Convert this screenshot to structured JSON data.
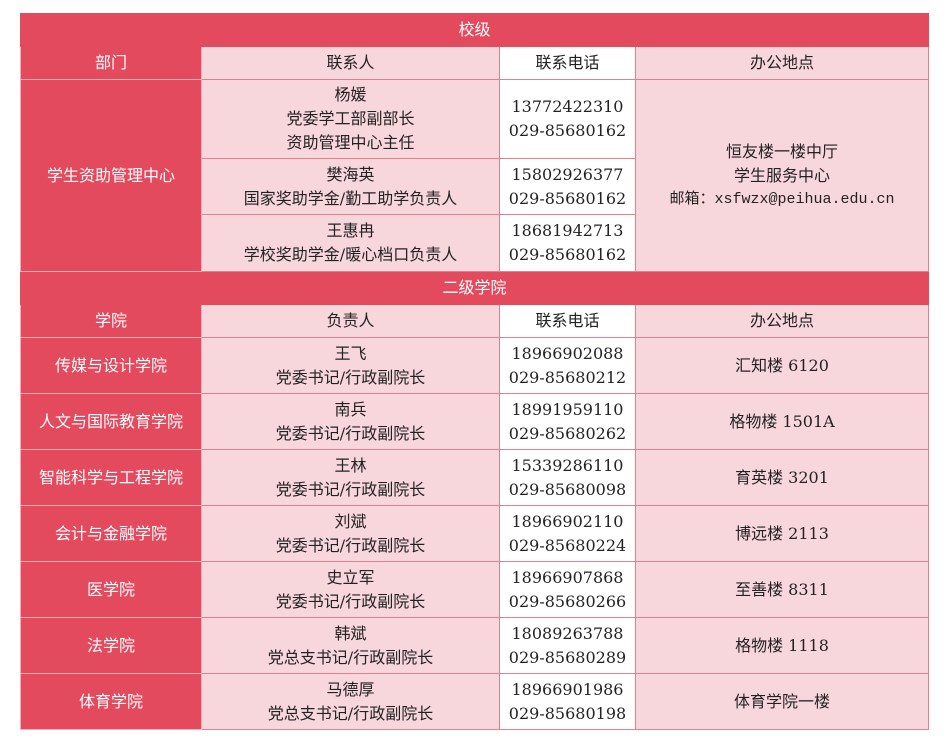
{
  "school": {
    "section_title": "校级",
    "headers": [
      "部门",
      "联系人",
      "联系电话",
      "办公地点"
    ],
    "department": "学生资助管理中心",
    "contacts": [
      {
        "lines": [
          "杨媛",
          "党委学工部副部长",
          "资助管理中心主任"
        ],
        "phones": [
          "13772422310",
          "029-85680162"
        ]
      },
      {
        "lines": [
          "樊海英",
          "国家奖助学金/勤工助学负责人"
        ],
        "phones": [
          "15802926377",
          "029-85680162"
        ]
      },
      {
        "lines": [
          "王惠冉",
          "学校奖助学金/暖心档口负责人"
        ],
        "phones": [
          "18681942713",
          "029-85680162"
        ]
      }
    ],
    "office": [
      "恒友楼一楼中厅",
      "学生服务中心",
      "邮箱：xsfwzx@peihua.edu.cn"
    ]
  },
  "colleges": {
    "section_title": "二级学院",
    "headers": [
      "学院",
      "负责人",
      "联系电话",
      "办公地点"
    ],
    "rows": [
      {
        "college": "传媒与设计学院",
        "name": "王飞",
        "title": "党委书记/行政副院长",
        "phones": [
          "18966902088",
          "029-85680212"
        ],
        "office": "汇知楼 6120"
      },
      {
        "college": "人文与国际教育学院",
        "name": "南兵",
        "title": "党委书记/行政副院长",
        "phones": [
          "18991959110",
          "029-85680262"
        ],
        "office": "格物楼 1501A"
      },
      {
        "college": "智能科学与工程学院",
        "name": "王林",
        "title": "党委书记/行政副院长",
        "phones": [
          "15339286110",
          "029-85680098"
        ],
        "office": "育英楼 3201"
      },
      {
        "college": "会计与金融学院",
        "name": "刘斌",
        "title": "党委书记/行政副院长",
        "phones": [
          "18966902110",
          "029-85680224"
        ],
        "office": "博远楼 2113"
      },
      {
        "college": "医学院",
        "name": "史立军",
        "title": "党委书记/行政副院长",
        "phones": [
          "18966907868",
          "029-85680266"
        ],
        "office": "至善楼 8311"
      },
      {
        "college": "法学院",
        "name": "韩斌",
        "title": "党总支书记/行政副院长",
        "phones": [
          "18089263788",
          "029-85680289"
        ],
        "office": "格物楼 1118"
      },
      {
        "college": "体育学院",
        "name": "马德厚",
        "title": "党总支书记/行政副院长",
        "phones": [
          "18966901986",
          "029-85680198"
        ],
        "office": "体育学院一楼"
      }
    ]
  },
  "colors": {
    "accent": "#e44a5e",
    "cell": "#f8d7dc",
    "phone_cell": "#ffffff"
  }
}
